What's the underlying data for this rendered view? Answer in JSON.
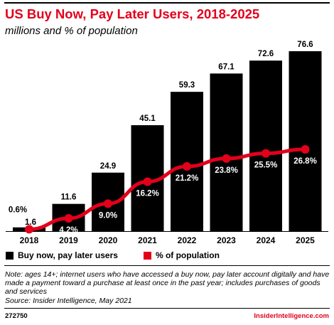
{
  "header": {
    "title": "US Buy Now, Pay Later Users, 2018-2025",
    "subtitle": "millions and % of population"
  },
  "legend": {
    "bars_label": "Buy now, pay later users",
    "line_label": "% of population"
  },
  "colors": {
    "bar": "#000000",
    "line": "#e3001b",
    "brand": "#e3001b"
  },
  "chart_data": {
    "type": "bar",
    "categories": [
      "2018",
      "2019",
      "2020",
      "2021",
      "2022",
      "2023",
      "2024",
      "2025"
    ],
    "series": [
      {
        "name": "Buy now, pay later users",
        "type": "bar",
        "values": [
          1.6,
          11.6,
          24.9,
          45.1,
          59.3,
          67.1,
          72.6,
          76.6
        ],
        "labels": [
          "1.6",
          "11.6",
          "24.9",
          "45.1",
          "59.3",
          "67.1",
          "72.6",
          "76.6"
        ]
      },
      {
        "name": "% of population",
        "type": "line",
        "values": [
          0.6,
          4.2,
          9.0,
          16.2,
          21.2,
          23.8,
          25.5,
          26.8
        ],
        "labels": [
          "0.6%",
          "4.2%",
          "9.0%",
          "16.2%",
          "21.2%",
          "23.8%",
          "25.5%",
          "26.8%"
        ]
      }
    ],
    "title": "US Buy Now, Pay Later Users, 2018-2025",
    "subtitle": "millions and % of population",
    "grid": false,
    "legend_position": "bottom"
  },
  "footer": {
    "note": "Note: ages 14+; internet users who have accessed a buy now, pay later account digitally and have made a payment toward a purchase at least once in the past year; includes purchases of goods and services",
    "source": "Source: Insider Intelligence, May 2021",
    "id": "272750",
    "brand": "InsiderIntelligence.com"
  }
}
